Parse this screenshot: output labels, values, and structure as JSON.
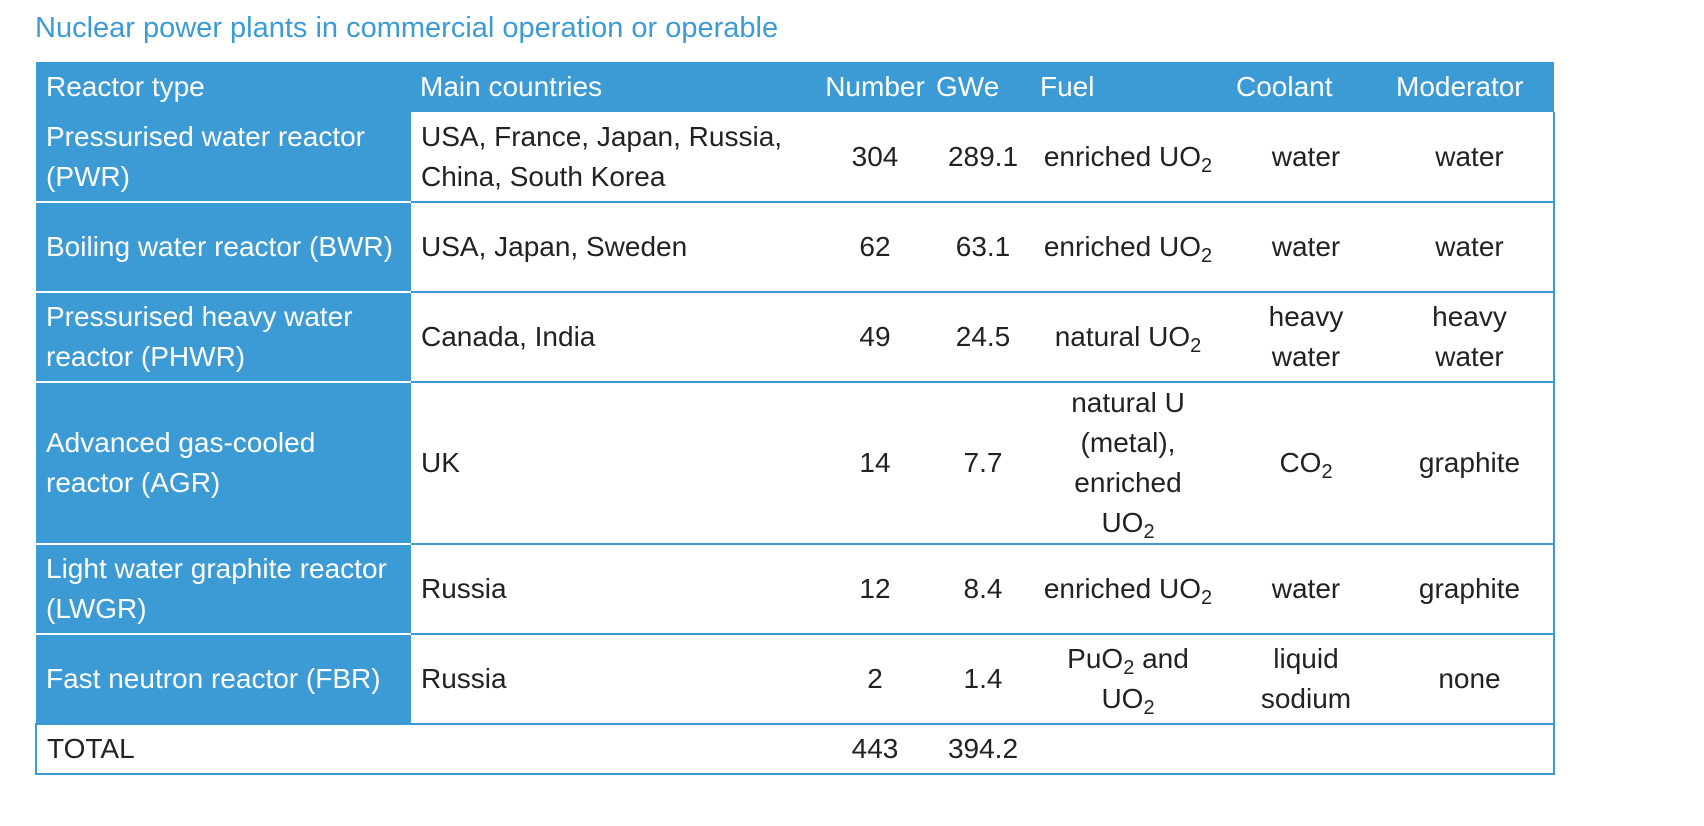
{
  "caption": "Nuclear power plants in commercial operation or operable",
  "colors": {
    "accent": "#3c9bd4",
    "header_text": "#ffffff",
    "body_text": "#222222"
  },
  "table": {
    "headers": {
      "reactor_type": "Reactor type",
      "main_countries": "Main countries",
      "number": "Number",
      "gwe": "GWe",
      "fuel": "Fuel",
      "coolant": "Coolant",
      "moderator": "Moderator"
    },
    "rows": [
      {
        "reactor_type": "Pressurised water reactor (PWR)",
        "main_countries": "USA, France, Japan, Russia, China, South Korea",
        "number": "304",
        "gwe": "289.1",
        "fuel_main": "enriched UO",
        "fuel_sub": "2",
        "coolant": "water",
        "moderator": "water"
      },
      {
        "reactor_type": "Boiling water reactor (BWR)",
        "main_countries": "USA, Japan, Sweden",
        "number": "62",
        "gwe": "63.1",
        "fuel_main": "enriched UO",
        "fuel_sub": "2",
        "coolant": "water",
        "moderator": "water"
      },
      {
        "reactor_type": "Pressurised heavy water reactor (PHWR)",
        "main_countries": "Canada, India",
        "number": "49",
        "gwe": "24.5",
        "fuel_main": "natural UO",
        "fuel_sub": "2",
        "coolant": "heavy water",
        "moderator": "heavy water"
      },
      {
        "reactor_type": "Advanced gas-cooled reactor (AGR)",
        "main_countries": "UK",
        "number": "14",
        "gwe": "7.7",
        "fuel_line1": "natural U (metal),",
        "fuel_main": "enriched UO",
        "fuel_sub": "2",
        "coolant_main": "CO",
        "coolant_sub": "2",
        "moderator": "graphite"
      },
      {
        "reactor_type": "Light water graphite reactor (LWGR)",
        "main_countries": "Russia",
        "number": "12",
        "gwe": "8.4",
        "fuel_main": "enriched UO",
        "fuel_sub": "2",
        "coolant": "water",
        "moderator": "graphite"
      },
      {
        "reactor_type": "Fast neutron reactor (FBR)",
        "main_countries": "Russia",
        "number": "2",
        "gwe": "1.4",
        "fuel_a": "PuO",
        "fuel_a_sub": "2",
        "fuel_a_rest": " and",
        "fuel_b": "UO",
        "fuel_b_sub": "2",
        "coolant": "liquid sodium",
        "moderator": "none"
      }
    ],
    "total": {
      "label": "TOTAL",
      "number": "443",
      "gwe": "394.2"
    }
  }
}
